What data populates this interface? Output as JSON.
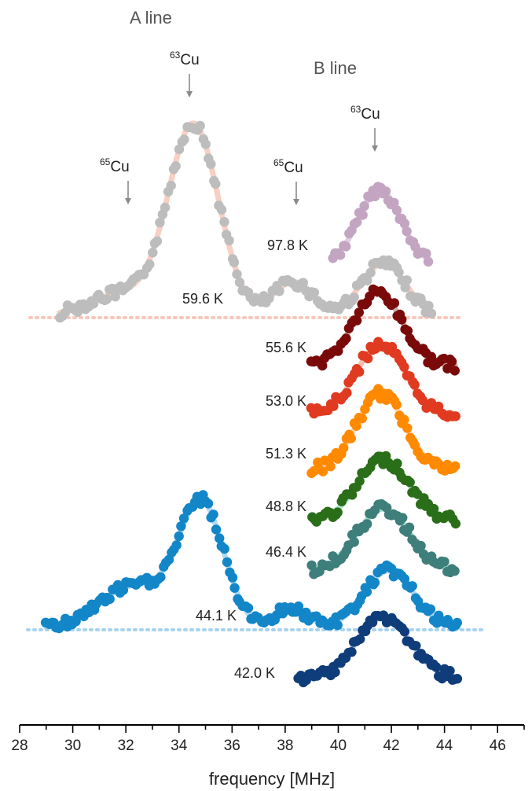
{
  "chart_data": {
    "type": "scatter",
    "xlabel": "frequency [MHz]",
    "xlim": [
      28,
      47
    ],
    "x_ticks": [
      "28",
      "30",
      "32",
      "34",
      "36",
      "38",
      "40",
      "42",
      "44",
      "46"
    ],
    "headers": {
      "a_line": "A line",
      "b_line": "B line"
    },
    "markers": [
      {
        "id": "cu65-a",
        "isotope": "65",
        "element": "Cu",
        "x": 32.2
      },
      {
        "id": "cu63-a",
        "isotope": "63",
        "element": "Cu",
        "x": 34.4
      },
      {
        "id": "cu65-b",
        "isotope": "65",
        "element": "Cu",
        "x": 38.4
      },
      {
        "id": "cu63-b",
        "isotope": "63",
        "element": "Cu",
        "x": 41.4
      }
    ],
    "series": [
      {
        "name": "97.8 K",
        "color": "#C3A5C2",
        "fit_color": "#D9C6D9",
        "x_range": [
          39.8,
          43.4
        ],
        "amp": 0.84,
        "center": 41.55,
        "width": 0.78
      },
      {
        "name": "59.6 K",
        "color": "#BDBDBD",
        "fit_color": "#F8C7B9",
        "x_range": [
          29.5,
          43.5
        ],
        "amp": 1.0,
        "center": 34.5,
        "width": 1.0,
        "baseline_dotted": true
      },
      {
        "name": "55.6 K",
        "color": "#7A0A0A",
        "fit_color": "#C9A0A0",
        "x_range": [
          39.0,
          44.4
        ],
        "amp": 1.0,
        "center": 41.5,
        "width": 0.9
      },
      {
        "name": "53.0 K",
        "color": "#E03A20",
        "fit_color": "#F5B4A5",
        "x_range": [
          39.0,
          44.4
        ],
        "amp": 1.0,
        "center": 41.6,
        "width": 0.9
      },
      {
        "name": "51.3 K",
        "color": "#FF8A00",
        "fit_color": "#FBD2B0",
        "x_range": [
          39.0,
          44.4
        ],
        "amp": 1.0,
        "center": 41.6,
        "width": 0.9
      },
      {
        "name": "48.8 K",
        "color": "#2A6E1A",
        "fit_color": "#A6E8C6",
        "x_range": [
          39.0,
          44.4
        ],
        "amp": 1.0,
        "center": 41.7,
        "width": 0.95
      },
      {
        "name": "46.4 K",
        "color": "#3E7E7B",
        "fit_color": "#8FD8C2",
        "x_range": [
          39.0,
          44.4
        ],
        "amp": 1.0,
        "center": 41.7,
        "width": 1.0
      },
      {
        "name": "44.1 K",
        "color": "#1386C8",
        "fit_color": "#A6D3F0",
        "x_range": [
          29.0,
          44.5
        ],
        "amp": 1.0,
        "center": 34.8,
        "width": 1.0,
        "baseline_dotted": true
      },
      {
        "name": "42.0 K",
        "color": "#0F3D7A",
        "fit_color": "#A9BEDA",
        "x_range": [
          38.5,
          44.5
        ],
        "amp": 1.0,
        "center": 41.7,
        "width": 1.0
      }
    ]
  }
}
